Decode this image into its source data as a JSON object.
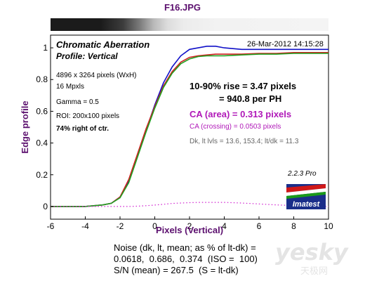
{
  "header": {
    "file_title": "F16.JPG"
  },
  "annotations": {
    "title": "Chromatic Aberration",
    "profile": "Profile: Vertical",
    "date": "26-Mar-2012 14:15:28",
    "dims": "4896 x 3264 pixels (WxH)",
    "mpxls": "16 Mpxls",
    "gamma": "Gamma = 0.5",
    "roi": "ROI: 200x100 pixels",
    "position": "74% right of ctr.",
    "rise": "10-90% rise = 3.47 pixels",
    "per_ph": "= 940.8 per PH",
    "ca_area": "CA (area) = 0.313 pixels",
    "ca_crossing": "CA (crossing) = 0.0503 pixels",
    "dk_levels": "Dk, lt lvls = 13.6, 153.4;  lt/dk = 11.3",
    "version": "2.2.3  Pro",
    "logo_text": "Imatest"
  },
  "noise": {
    "line1": "Noise (dk, lt, mean; as % of lt-dk) =",
    "line2": "0.0618,  0.686,  0.374  (ISO =  100)",
    "line3": "S/N (mean) = 267.5  (S = lt-dk)"
  },
  "watermark": {
    "big": "yesky",
    "small": "天极网"
  },
  "colors": {
    "blue": "#1010c8",
    "red": "#d02020",
    "green": "#20a020",
    "magenta": "#d020d0",
    "axis_label": "#5b0f6e"
  },
  "chart_data": {
    "type": "line",
    "xlabel": "Pixels (Vertical)",
    "ylabel": "Edge profile",
    "xlim": [
      -6,
      10
    ],
    "ylim": [
      -0.08,
      1.08
    ],
    "x_ticks": [
      -6,
      -4,
      -2,
      0,
      2,
      4,
      6,
      8,
      10
    ],
    "y_ticks": [
      0,
      0.2,
      0.4,
      0.6,
      0.8,
      1
    ],
    "y_tick_labels": [
      "0",
      "0.2",
      "0.4",
      "0.6",
      "0.8",
      "1"
    ],
    "grid": false,
    "x": [
      -6,
      -5,
      -4,
      -3,
      -2.5,
      -2,
      -1.5,
      -1,
      -0.5,
      0,
      0.5,
      1,
      1.5,
      2,
      2.5,
      3,
      3.5,
      4,
      5,
      6,
      7,
      8,
      9,
      10
    ],
    "series": [
      {
        "color": "#1010c8",
        "values": [
          0.0,
          0.0,
          0.0,
          0.01,
          0.02,
          0.06,
          0.16,
          0.32,
          0.48,
          0.64,
          0.78,
          0.88,
          0.95,
          0.99,
          1.0,
          1.01,
          1.01,
          1.0,
          0.99,
          0.99,
          0.99,
          0.99,
          0.99,
          0.99
        ]
      },
      {
        "color": "#d02020",
        "values": [
          0.0,
          0.0,
          0.0,
          0.01,
          0.02,
          0.06,
          0.17,
          0.33,
          0.49,
          0.63,
          0.76,
          0.85,
          0.91,
          0.94,
          0.95,
          0.955,
          0.96,
          0.96,
          0.96,
          0.965,
          0.965,
          0.97,
          0.97,
          0.97
        ]
      },
      {
        "color": "#20a020",
        "values": [
          0.0,
          0.0,
          0.0,
          0.01,
          0.02,
          0.055,
          0.15,
          0.31,
          0.47,
          0.62,
          0.75,
          0.84,
          0.9,
          0.93,
          0.945,
          0.95,
          0.95,
          0.95,
          0.955,
          0.96,
          0.96,
          0.965,
          0.965,
          0.965
        ]
      },
      {
        "color": "#d020d0",
        "dashed": true,
        "values": [
          0.0,
          0.0,
          0.0,
          0.0,
          0.0,
          0.0,
          0.0,
          0.002,
          0.005,
          0.009,
          0.014,
          0.019,
          0.022,
          0.024,
          0.026,
          0.026,
          0.026,
          0.026,
          0.022,
          0.016,
          0.01,
          0.006,
          0.003,
          0.001
        ]
      }
    ]
  }
}
